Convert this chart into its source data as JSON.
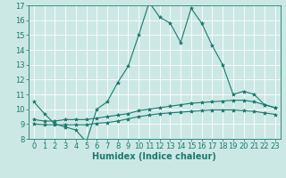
{
  "title": "",
  "xlabel": "Humidex (Indice chaleur)",
  "ylabel": "",
  "background_color": "#cce8e4",
  "plot_bg_color": "#cce8e4",
  "line_color": "#1a7a6e",
  "grid_color": "#ffffff",
  "xlim": [
    -0.5,
    23.5
  ],
  "ylim": [
    8,
    17
  ],
  "yticks": [
    8,
    9,
    10,
    11,
    12,
    13,
    14,
    15,
    16,
    17
  ],
  "xticks": [
    0,
    1,
    2,
    3,
    4,
    5,
    6,
    7,
    8,
    9,
    10,
    11,
    12,
    13,
    14,
    15,
    16,
    17,
    18,
    19,
    20,
    21,
    22,
    23
  ],
  "series1_x": [
    0,
    1,
    2,
    3,
    4,
    5,
    6,
    7,
    8,
    9,
    10,
    11,
    12,
    13,
    14,
    15,
    16,
    17,
    18,
    19,
    20,
    21,
    22,
    23
  ],
  "series1_y": [
    10.5,
    9.7,
    9.0,
    8.8,
    8.6,
    7.8,
    10.0,
    10.5,
    11.8,
    12.9,
    15.0,
    17.2,
    16.2,
    15.8,
    14.5,
    16.8,
    15.8,
    14.3,
    13.0,
    11.0,
    11.2,
    11.0,
    10.3,
    10.1
  ],
  "series2_x": [
    0,
    1,
    2,
    3,
    4,
    5,
    6,
    7,
    8,
    9,
    10,
    11,
    12,
    13,
    14,
    15,
    16,
    17,
    18,
    19,
    20,
    21,
    22,
    23
  ],
  "series2_y": [
    9.3,
    9.2,
    9.2,
    9.3,
    9.3,
    9.3,
    9.4,
    9.5,
    9.6,
    9.7,
    9.9,
    10.0,
    10.1,
    10.2,
    10.3,
    10.4,
    10.45,
    10.5,
    10.55,
    10.6,
    10.6,
    10.5,
    10.3,
    10.1
  ],
  "series3_x": [
    0,
    1,
    2,
    3,
    4,
    5,
    6,
    7,
    8,
    9,
    10,
    11,
    12,
    13,
    14,
    15,
    16,
    17,
    18,
    19,
    20,
    21,
    22,
    23
  ],
  "series3_y": [
    9.0,
    8.95,
    8.95,
    8.95,
    8.95,
    8.95,
    9.05,
    9.1,
    9.2,
    9.35,
    9.5,
    9.6,
    9.7,
    9.75,
    9.8,
    9.85,
    9.9,
    9.95,
    9.95,
    9.95,
    9.9,
    9.85,
    9.75,
    9.65
  ],
  "marker": "*",
  "markersize": 3,
  "linewidth": 0.8,
  "xlabel_fontsize": 7,
  "tick_fontsize": 6
}
